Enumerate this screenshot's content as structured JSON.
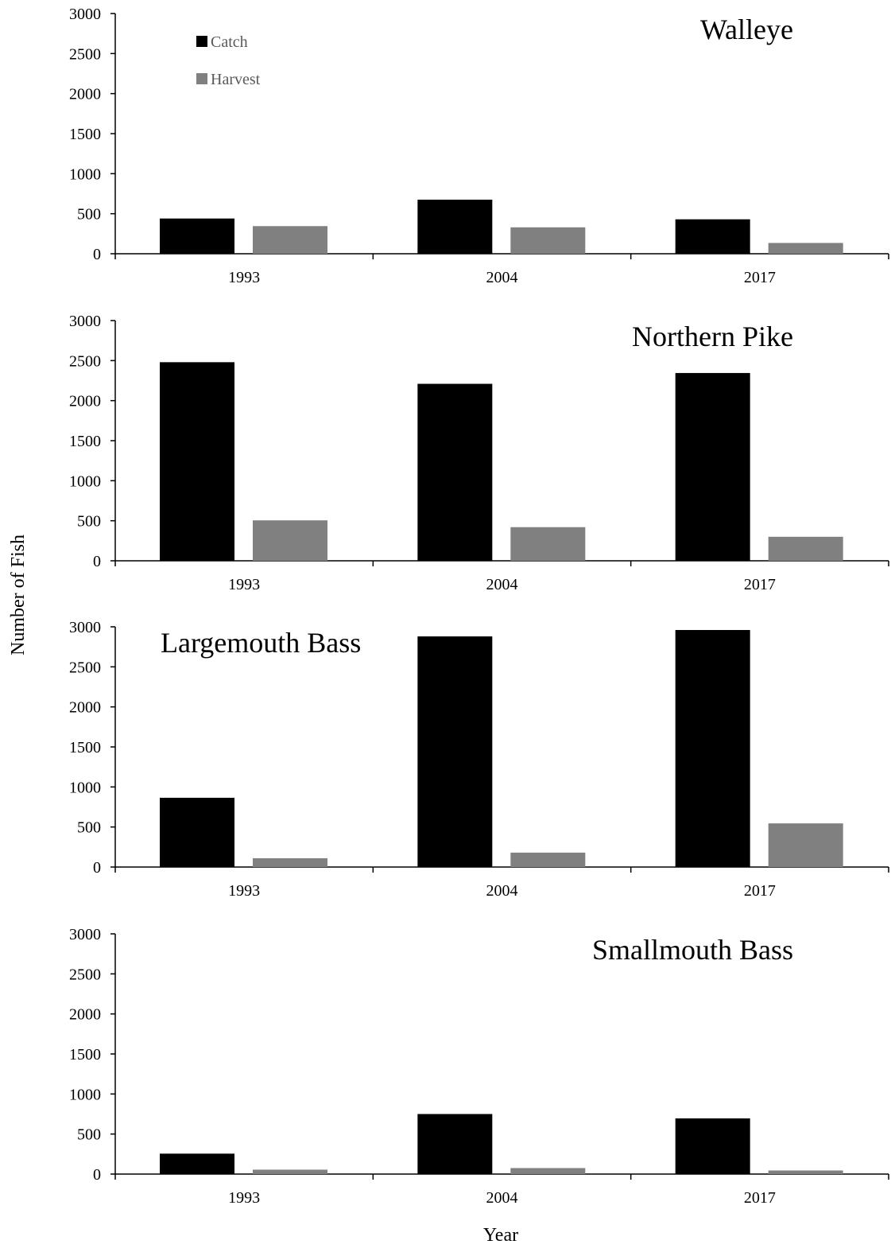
{
  "figure": {
    "ylabel": "Number of Fish",
    "xlabel": "Year"
  },
  "legend": {
    "items": [
      {
        "label": "Catch",
        "color": "#000000"
      },
      {
        "label": "Harvest",
        "color": "#808080"
      }
    ]
  },
  "chart_data": [
    {
      "type": "bar",
      "title": "Walleye",
      "title_position": "top-right",
      "categories": [
        "1993",
        "2004",
        "2017"
      ],
      "series": [
        {
          "name": "Catch",
          "color": "#000000",
          "values": [
            440,
            675,
            430
          ]
        },
        {
          "name": "Harvest",
          "color": "#808080",
          "values": [
            345,
            330,
            135
          ]
        }
      ],
      "ylim": [
        0,
        3000
      ],
      "yticks": [
        0,
        500,
        1000,
        1500,
        2000,
        2500,
        3000
      ],
      "grid": false,
      "legend": "top-left"
    },
    {
      "type": "bar",
      "title": "Northern Pike",
      "title_position": "top-right",
      "categories": [
        "1993",
        "2004",
        "2017"
      ],
      "series": [
        {
          "name": "Catch",
          "color": "#000000",
          "values": [
            2480,
            2210,
            2345
          ]
        },
        {
          "name": "Harvest",
          "color": "#808080",
          "values": [
            505,
            420,
            300
          ]
        }
      ],
      "ylim": [
        0,
        3000
      ],
      "yticks": [
        0,
        500,
        1000,
        1500,
        2000,
        2500,
        3000
      ],
      "grid": false
    },
    {
      "type": "bar",
      "title": "Largemouth Bass",
      "title_position": "top-left",
      "categories": [
        "1993",
        "2004",
        "2017"
      ],
      "series": [
        {
          "name": "Catch",
          "color": "#000000",
          "values": [
            865,
            2880,
            2960
          ]
        },
        {
          "name": "Harvest",
          "color": "#808080",
          "values": [
            110,
            180,
            545
          ]
        }
      ],
      "ylim": [
        0,
        3000
      ],
      "yticks": [
        0,
        500,
        1000,
        1500,
        2000,
        2500,
        3000
      ],
      "grid": false
    },
    {
      "type": "bar",
      "title": "Smallmouth Bass",
      "title_position": "top-right",
      "categories": [
        "1993",
        "2004",
        "2017"
      ],
      "series": [
        {
          "name": "Catch",
          "color": "#000000",
          "values": [
            255,
            750,
            695
          ]
        },
        {
          "name": "Harvest",
          "color": "#808080",
          "values": [
            55,
            75,
            45
          ]
        }
      ],
      "ylim": [
        0,
        3000
      ],
      "yticks": [
        0,
        500,
        1000,
        1500,
        2000,
        2500,
        3000
      ],
      "grid": false
    }
  ]
}
